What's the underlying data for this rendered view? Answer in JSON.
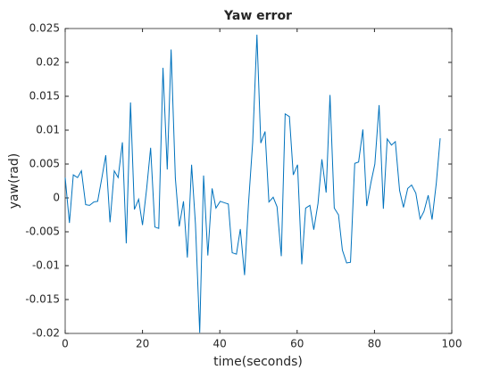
{
  "chart_data": {
    "type": "line",
    "title": "Yaw error",
    "xlabel": "time(seconds)",
    "ylabel": "yaw(rad)",
    "xlim": [
      0,
      100
    ],
    "xticks": [
      0,
      20,
      40,
      60,
      80,
      100
    ],
    "ylim": [
      -0.02,
      0.025
    ],
    "yticks": [
      -0.02,
      -0.015,
      -0.01,
      -0.005,
      0,
      0.005,
      0.01,
      0.015,
      0.02,
      0.025
    ],
    "x": [
      0,
      1.1,
      2.1,
      3.2,
      4.2,
      5.3,
      6.3,
      7.4,
      8.4,
      9.5,
      10.5,
      11.6,
      12.7,
      13.7,
      14.8,
      15.8,
      16.9,
      17.9,
      19,
      20,
      21.1,
      22.1,
      23.2,
      24.2,
      25.3,
      26.4,
      27.4,
      28.5,
      29.5,
      30.6,
      31.6,
      32.7,
      33.7,
      34.8,
      35.8,
      36.9,
      38,
      39,
      40.1,
      41.1,
      42.2,
      43.2,
      44.3,
      45.3,
      46.4,
      47.4,
      48.5,
      49.6,
      50.6,
      51.7,
      52.7,
      53.8,
      54.8,
      55.9,
      56.9,
      58,
      59,
      60.1,
      61.2,
      62.2,
      63.3,
      64.3,
      65.4,
      66.4,
      67.5,
      68.5,
      69.6,
      70.7,
      71.7,
      72.8,
      73.8,
      74.9,
      75.9,
      77,
      78,
      79.1,
      80.1,
      81.2,
      82.3,
      83.3,
      84.4,
      85.4,
      86.5,
      87.5,
      88.6,
      89.6,
      90.7,
      91.8,
      92.8,
      93.9,
      94.9,
      96,
      97
    ],
    "series": [
      {
        "color": "#0072bd",
        "values": [
          0.003,
          -0.0037,
          0.0034,
          0.003,
          0.004,
          -0.001,
          -0.0011,
          -0.0006,
          -0.0005,
          0.003,
          0.0063,
          -0.0036,
          0.004,
          0.003,
          0.0082,
          -0.0067,
          0.0141,
          -0.0017,
          -0.0002,
          -0.004,
          0.0015,
          0.0074,
          -0.0043,
          -0.0045,
          0.0192,
          0.0042,
          0.0219,
          0.0029,
          -0.0042,
          -0.0005,
          -0.0088,
          0.0049,
          -0.0039,
          -0.0199,
          0.0033,
          -0.0085,
          0.0014,
          -0.0015,
          -0.0005,
          -0.0007,
          -0.0009,
          -0.0081,
          -0.0083,
          -0.0046,
          -0.0114,
          -0.001,
          0.0082,
          0.0241,
          0.0081,
          0.0098,
          -0.0006,
          0.0001,
          -0.0013,
          -0.0086,
          0.0124,
          0.012,
          0.0034,
          0.0049,
          -0.0098,
          -0.0015,
          -0.0011,
          -0.0047,
          -0.0008,
          0.0057,
          0.0008,
          0.0152,
          -0.0015,
          -0.0025,
          -0.0077,
          -0.0096,
          -0.0095,
          0.0051,
          0.0053,
          0.0101,
          -0.0012,
          0.0023,
          0.005,
          0.0137,
          -0.0016,
          0.0087,
          0.0078,
          0.0083,
          0.0011,
          -0.0014,
          0.0014,
          0.0019,
          0.0007,
          -0.0031,
          -0.002,
          0.0004,
          -0.0032,
          0.0022,
          0.0088
        ]
      }
    ]
  }
}
